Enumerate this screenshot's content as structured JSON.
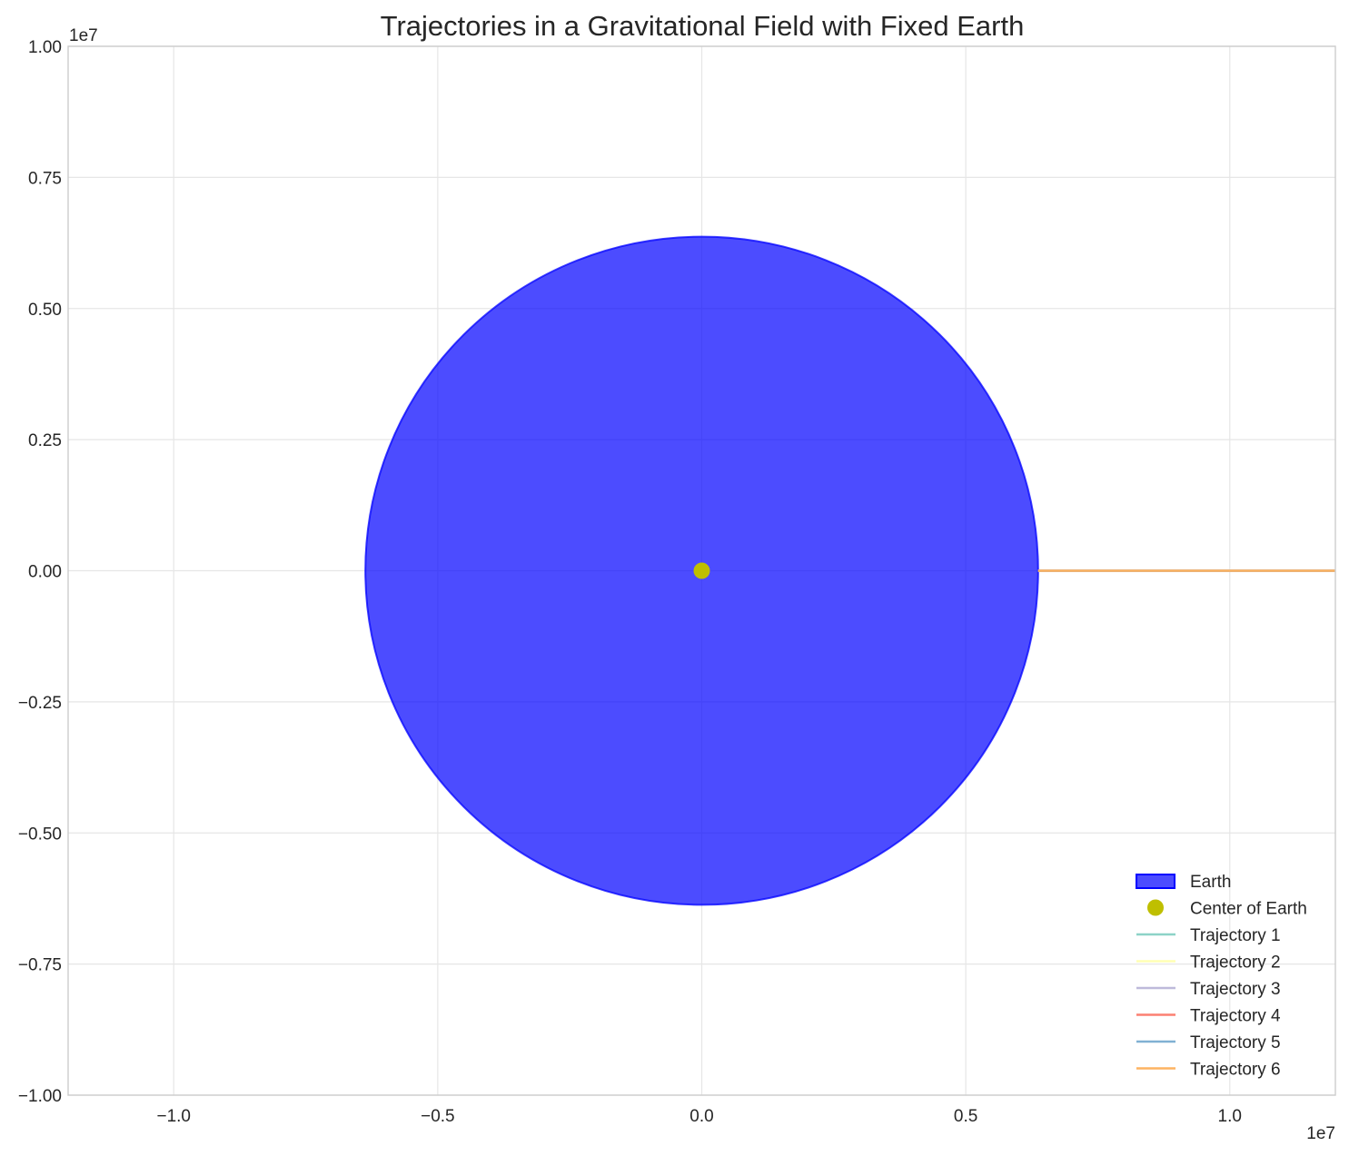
{
  "chart_data": {
    "type": "line",
    "title": "Trajectories in a Gravitational Field with Fixed Earth",
    "xlabel": "",
    "ylabel": "",
    "xlim": [
      -1.2,
      1.2
    ],
    "ylim": [
      -1.0,
      1.0
    ],
    "x_offset_label": "1e7",
    "y_offset_label": "1e7",
    "x_ticks": [
      -1.0,
      -0.5,
      0.0,
      0.5,
      1.0
    ],
    "x_tick_labels": [
      "−1.0",
      "−0.5",
      "0.0",
      "0.5",
      "1.0"
    ],
    "y_ticks": [
      1.0,
      0.75,
      0.5,
      0.25,
      0.0,
      -0.25,
      -0.5,
      -0.75,
      -1.0
    ],
    "y_tick_labels": [
      "1.00",
      "0.75",
      "0.50",
      "0.25",
      "0.00",
      "−0.25",
      "−0.50",
      "−0.75",
      "−1.00"
    ],
    "grid": true,
    "legend_position": "lower-right",
    "earth": {
      "label": "Earth",
      "center": [
        0,
        0
      ],
      "radius": 0.6371,
      "fill_color": "#0000ff",
      "fill_opacity": 0.7,
      "edge_color": "#0000ff"
    },
    "center_marker": {
      "label": "Center of Earth",
      "x": 0,
      "y": 0,
      "color": "#bfbf00"
    },
    "series": [
      {
        "name": "Trajectory 1",
        "color": "#8dd3c7",
        "x": [
          0.6371,
          0.9,
          1.2
        ],
        "y": [
          0,
          0,
          0
        ]
      },
      {
        "name": "Trajectory 2",
        "color": "#ffffb3",
        "x": [
          0.6371,
          0.9,
          1.2
        ],
        "y": [
          0,
          0,
          0
        ]
      },
      {
        "name": "Trajectory 3",
        "color": "#bebada",
        "x": [
          0.6371,
          0.9,
          1.2
        ],
        "y": [
          0,
          0,
          0
        ]
      },
      {
        "name": "Trajectory 4",
        "color": "#fb8072",
        "x": [
          0.6371,
          0.9,
          1.2
        ],
        "y": [
          0,
          0,
          0
        ]
      },
      {
        "name": "Trajectory 5",
        "color": "#80b1d3",
        "x": [
          0.6371,
          0.9,
          1.2
        ],
        "y": [
          0,
          0,
          0
        ]
      },
      {
        "name": "Trajectory 6",
        "color": "#fdb462",
        "x": [
          0.6371,
          0.9,
          1.2
        ],
        "y": [
          0,
          0,
          0
        ]
      }
    ]
  }
}
